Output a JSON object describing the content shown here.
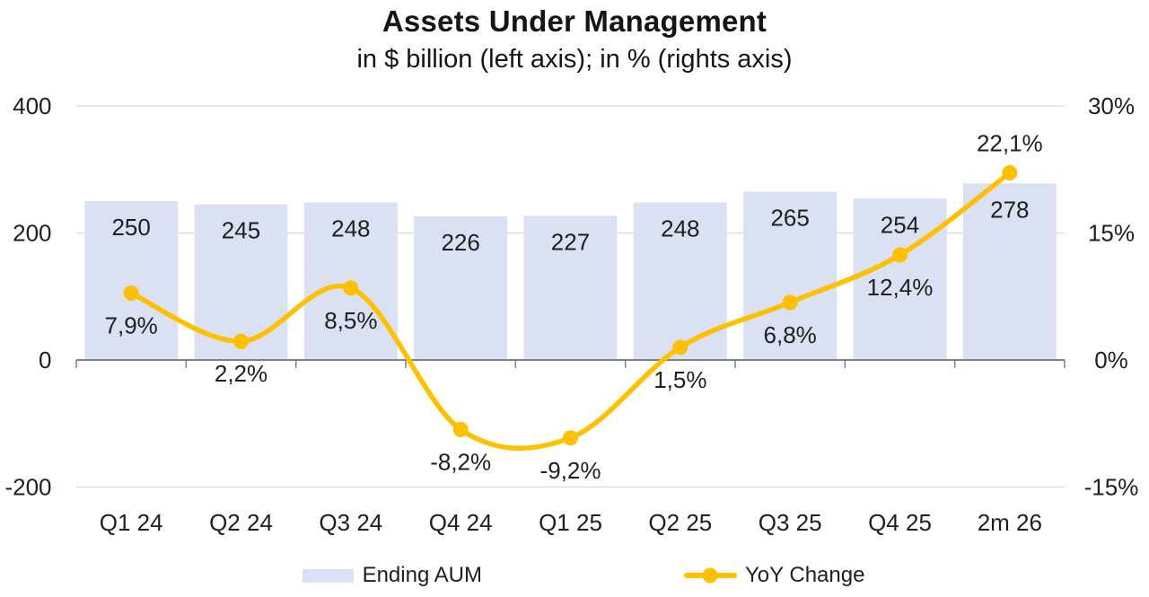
{
  "header": {
    "title": "Assets Under Management",
    "subtitle": "in $ billion (left axis); in % (rights axis)"
  },
  "chart_data": {
    "type": "combo_bar_line",
    "categories": [
      "Q1 24",
      "Q2 24",
      "Q3 24",
      "Q4 24",
      "Q1 25",
      "Q2 25",
      "Q3 25",
      "Q4 25",
      "2m 26"
    ],
    "series": [
      {
        "name": "Ending AUM",
        "type": "bar",
        "axis": "left",
        "unit": "$ billion",
        "values": [
          250,
          245,
          248,
          226,
          227,
          248,
          265,
          254,
          278
        ],
        "data_labels": [
          "250",
          "245",
          "248",
          "226",
          "227",
          "248",
          "265",
          "254",
          "278"
        ],
        "color": "#D9E1F2"
      },
      {
        "name": "YoY Change",
        "type": "line",
        "axis": "right",
        "unit": "%",
        "smooth": true,
        "values": [
          7.9,
          2.2,
          8.5,
          -8.2,
          -9.2,
          1.5,
          6.8,
          12.4,
          22.1
        ],
        "data_labels": [
          "7,9%",
          "2,2%",
          "8,5%",
          "-8,2%",
          "-9,2%",
          "1,5%",
          "6,8%",
          "12,4%",
          "22,1%"
        ],
        "label_placement": [
          "below",
          "below",
          "below",
          "below",
          "below",
          "below",
          "below",
          "below",
          "above"
        ],
        "color": "#FFC000"
      }
    ],
    "left_axis": {
      "min": -200,
      "max": 400,
      "tick_values": [
        400,
        200,
        0,
        -200
      ],
      "tick_labels": [
        "400",
        "200",
        "0",
        "-200"
      ]
    },
    "right_axis": {
      "min": -15,
      "max": 30,
      "tick_values": [
        30,
        15,
        0,
        -15
      ],
      "tick_labels": [
        "30%",
        "15%",
        "0%",
        "-15%"
      ]
    },
    "gridlines": true,
    "legend_position": "bottom",
    "legend_entries": [
      "Ending AUM",
      "YoY Change"
    ]
  },
  "style": {
    "bar_fill": "#D9E1F2",
    "line_color": "#FFC000",
    "gridline_color": "#D9D9D9",
    "axis_line_color": "#808080",
    "text_color": "#1f1f1f",
    "background": "#ffffff"
  }
}
